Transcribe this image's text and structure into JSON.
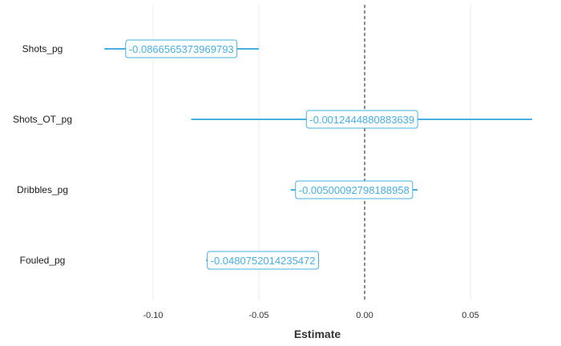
{
  "chart_data": {
    "type": "scatter",
    "subtype": "coefficient-plot",
    "title": "",
    "xlabel": "Estimate",
    "ylabel": "",
    "xlim": [
      -0.14,
      0.08
    ],
    "xticks": [
      -0.1,
      -0.05,
      0.0,
      0.05
    ],
    "xtick_labels": [
      "-0.10",
      "-0.05",
      "0.00",
      "0.05"
    ],
    "reference_line": {
      "x": 0,
      "style": "dashed"
    },
    "grid": "vertical-major",
    "color": "#4aaee0",
    "categories": [
      "Shots_pg",
      "Shots_OT_pg",
      "Dribbles_pg",
      "Fouled_pg"
    ],
    "estimates": [
      -0.0866565373969793,
      -0.0012444880883639,
      -0.00500092798188958,
      -0.0480752014235472
    ],
    "estimate_labels": [
      "-0.0866565373969793",
      "-0.0012444880883639",
      "-0.00500092798188958",
      "-0.0480752014235472"
    ],
    "ci_low": [
      -0.123,
      -0.082,
      -0.035,
      -0.075
    ],
    "ci_high": [
      -0.05,
      0.08,
      0.025,
      -0.0215
    ]
  }
}
